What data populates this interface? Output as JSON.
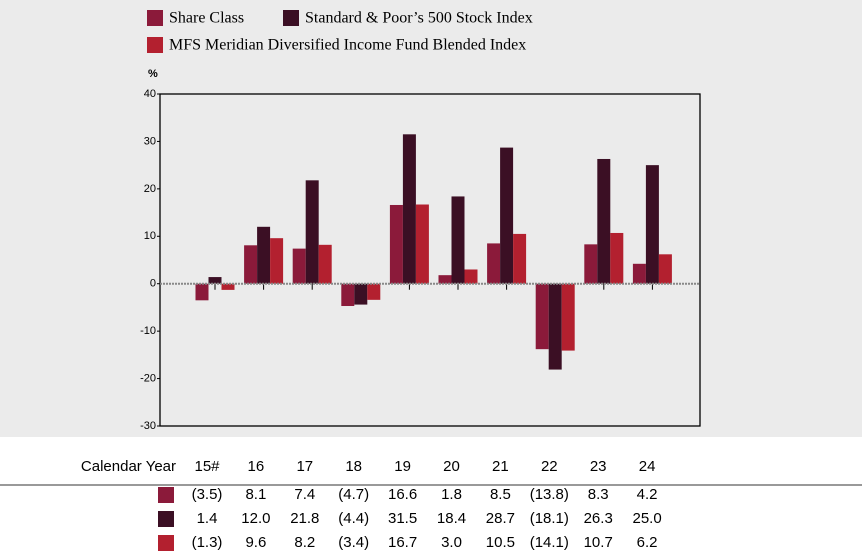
{
  "chart_data": {
    "type": "bar",
    "ylabel": "%",
    "table_header": "Calendar Year",
    "categories": [
      "15#",
      "16",
      "17",
      "18",
      "19",
      "20",
      "21",
      "22",
      "23",
      "24"
    ],
    "series": [
      {
        "name": "Share Class",
        "color": "#8b1a3a",
        "values": [
          -3.5,
          8.1,
          7.4,
          -4.7,
          16.6,
          1.8,
          8.5,
          -13.8,
          8.3,
          4.2
        ],
        "value_labels": [
          "(3.5)",
          "8.1",
          "7.4",
          "(4.7)",
          "16.6",
          "1.8",
          "8.5",
          "(13.8)",
          "8.3",
          "4.2"
        ]
      },
      {
        "name": "Standard & Poor’s 500 Stock Index",
        "color": "#3b0f24",
        "values": [
          1.4,
          12.0,
          21.8,
          -4.4,
          31.5,
          18.4,
          28.7,
          -18.1,
          26.3,
          25.0
        ],
        "value_labels": [
          "1.4",
          "12.0",
          "21.8",
          "(4.4)",
          "31.5",
          "18.4",
          "28.7",
          "(18.1)",
          "26.3",
          "25.0"
        ]
      },
      {
        "name": "MFS Meridian Diversified Income Fund Blended Index",
        "color": "#b3202f",
        "values": [
          -1.3,
          9.6,
          8.2,
          -3.4,
          16.7,
          3.0,
          10.5,
          -14.1,
          10.7,
          6.2
        ],
        "value_labels": [
          "(1.3)",
          "9.6",
          "8.2",
          "(3.4)",
          "16.7",
          "3.0",
          "10.5",
          "(14.1)",
          "10.7",
          "6.2"
        ]
      }
    ],
    "ylim": [
      -30,
      40
    ],
    "yticks": [
      -30,
      -20,
      -10,
      0,
      10,
      20,
      30,
      40
    ]
  }
}
